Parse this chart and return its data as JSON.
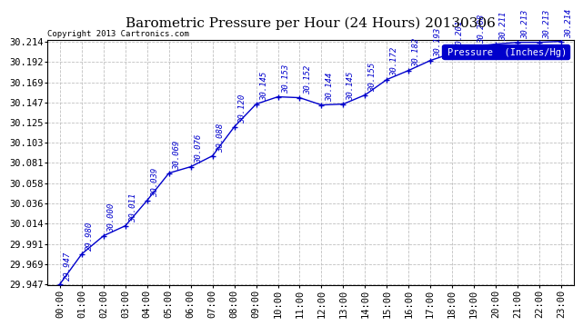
{
  "title": "Barometric Pressure per Hour (24 Hours) 20130306",
  "copyright": "Copyright 2013 Cartronics.com",
  "legend_label": "Pressure  (Inches/Hg)",
  "line_color": "#0000cc",
  "background_color": "#ffffff",
  "grid_color": "#c0c0c0",
  "hours": [
    0,
    1,
    2,
    3,
    4,
    5,
    6,
    7,
    8,
    9,
    10,
    11,
    12,
    13,
    14,
    15,
    16,
    17,
    18,
    19,
    20,
    21,
    22,
    23
  ],
  "values": [
    29.947,
    29.98,
    30.0,
    30.011,
    30.039,
    30.069,
    30.076,
    30.088,
    30.12,
    30.145,
    30.153,
    30.152,
    30.144,
    30.145,
    30.155,
    30.172,
    30.182,
    30.193,
    30.201,
    30.208,
    30.211,
    30.213,
    30.213,
    30.214
  ],
  "ylim_min": 29.947,
  "ylim_max": 30.214,
  "yticks": [
    29.947,
    29.969,
    29.991,
    30.014,
    30.036,
    30.058,
    30.081,
    30.103,
    30.125,
    30.147,
    30.169,
    30.192,
    30.214
  ],
  "title_fontsize": 11,
  "tick_fontsize": 7.5,
  "annotation_fontsize": 6.5,
  "copyright_fontsize": 6.5,
  "legend_fontsize": 7.5
}
